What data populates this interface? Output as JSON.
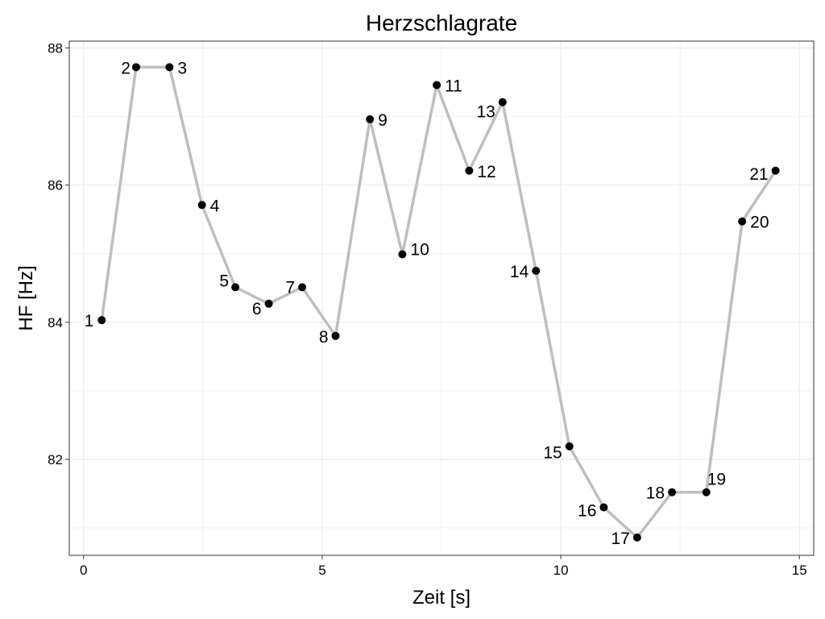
{
  "chart_data": {
    "type": "line",
    "title": "Herzschlagrate",
    "xlabel": "Zeit [s]",
    "ylabel": "HF [Hz]",
    "xlim": [
      -0.3,
      15.3
    ],
    "ylim": [
      80.6,
      88.1
    ],
    "x_ticks": [
      0,
      5,
      10,
      15
    ],
    "y_ticks": [
      82,
      84,
      86,
      88
    ],
    "grid": true,
    "line_color": "#bebebe",
    "point_color": "#000000",
    "series": [
      {
        "labels": [
          "1",
          "2",
          "3",
          "4",
          "5",
          "6",
          "7",
          "8",
          "9",
          "10",
          "11",
          "12",
          "13",
          "14",
          "15",
          "16",
          "17",
          "18",
          "19",
          "20",
          "21"
        ],
        "x": [
          0.38,
          1.1,
          1.8,
          2.48,
          3.18,
          3.88,
          4.58,
          5.28,
          6.0,
          6.68,
          7.4,
          8.08,
          8.78,
          9.48,
          10.18,
          10.9,
          11.6,
          12.33,
          13.05,
          13.8,
          14.5
        ],
        "y": [
          84.03,
          87.72,
          87.72,
          85.71,
          84.51,
          84.27,
          84.51,
          83.8,
          86.96,
          84.99,
          87.46,
          86.21,
          87.21,
          84.75,
          82.19,
          81.3,
          80.86,
          81.52,
          81.52,
          85.47,
          86.21
        ]
      }
    ]
  }
}
